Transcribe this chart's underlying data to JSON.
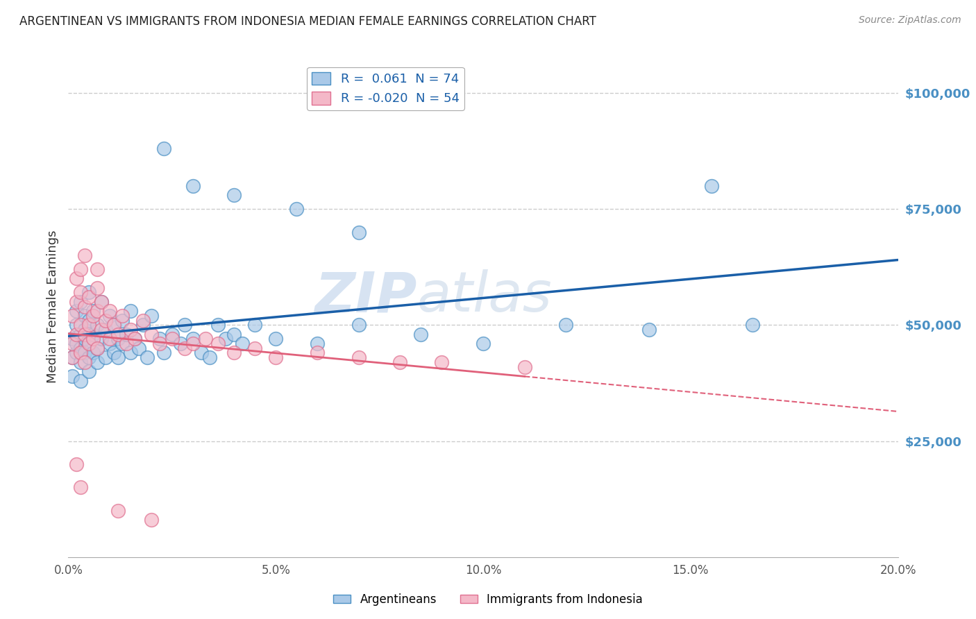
{
  "title": "ARGENTINEAN VS IMMIGRANTS FROM INDONESIA MEDIAN FEMALE EARNINGS CORRELATION CHART",
  "source": "Source: ZipAtlas.com",
  "ylabel": "Median Female Earnings",
  "xmin": 0.0,
  "xmax": 0.2,
  "ymin": 0,
  "ymax": 108000,
  "yticks": [
    25000,
    50000,
    75000,
    100000
  ],
  "ytick_labels": [
    "$25,000",
    "$50,000",
    "$75,000",
    "$100,000"
  ],
  "xticks": [
    0.0,
    0.05,
    0.1,
    0.15,
    0.2
  ],
  "xtick_labels": [
    "0.0%",
    "5.0%",
    "10.0%",
    "15.0%",
    "20.0%"
  ],
  "blue_R": 0.061,
  "blue_N": 74,
  "pink_R": -0.02,
  "pink_N": 54,
  "blue_color": "#aac9e8",
  "pink_color": "#f4b8c8",
  "blue_edge_color": "#4a90c4",
  "pink_edge_color": "#e07090",
  "blue_line_color": "#1a5fa8",
  "pink_line_color": "#e0607a",
  "tick_color": "#4a90c4",
  "background_color": "#ffffff",
  "grid_color": "#cccccc",
  "watermark_color": "#d0dff0",
  "legend_label_blue": "Argentineans",
  "legend_label_pink": "Immigrants from Indonesia",
  "blue_scatter_x": [
    0.001,
    0.001,
    0.001,
    0.002,
    0.002,
    0.002,
    0.002,
    0.003,
    0.003,
    0.003,
    0.003,
    0.003,
    0.004,
    0.004,
    0.004,
    0.004,
    0.005,
    0.005,
    0.005,
    0.005,
    0.005,
    0.006,
    0.006,
    0.006,
    0.007,
    0.007,
    0.007,
    0.008,
    0.008,
    0.009,
    0.009,
    0.01,
    0.01,
    0.011,
    0.011,
    0.012,
    0.012,
    0.013,
    0.013,
    0.014,
    0.015,
    0.015,
    0.016,
    0.017,
    0.018,
    0.019,
    0.02,
    0.022,
    0.023,
    0.025,
    0.027,
    0.028,
    0.03,
    0.032,
    0.034,
    0.036,
    0.038,
    0.04,
    0.042,
    0.045,
    0.05,
    0.06,
    0.07,
    0.085,
    0.1,
    0.12,
    0.14,
    0.165,
    0.023,
    0.03,
    0.04,
    0.055,
    0.07,
    0.155
  ],
  "blue_scatter_y": [
    43000,
    47000,
    39000,
    44000,
    50000,
    46000,
    53000,
    42000,
    48000,
    45000,
    55000,
    38000,
    47000,
    52000,
    44000,
    49000,
    46000,
    51000,
    43000,
    57000,
    40000,
    48000,
    44000,
    53000,
    45000,
    50000,
    42000,
    55000,
    47000,
    43000,
    49000,
    46000,
    52000,
    44000,
    50000,
    47000,
    43000,
    51000,
    46000,
    48000,
    44000,
    53000,
    47000,
    45000,
    50000,
    43000,
    52000,
    47000,
    44000,
    48000,
    46000,
    50000,
    47000,
    44000,
    43000,
    50000,
    47000,
    48000,
    46000,
    50000,
    47000,
    46000,
    50000,
    48000,
    46000,
    50000,
    49000,
    50000,
    88000,
    80000,
    78000,
    75000,
    70000,
    80000
  ],
  "pink_scatter_x": [
    0.001,
    0.001,
    0.001,
    0.002,
    0.002,
    0.002,
    0.003,
    0.003,
    0.003,
    0.003,
    0.004,
    0.004,
    0.004,
    0.005,
    0.005,
    0.005,
    0.006,
    0.006,
    0.007,
    0.007,
    0.007,
    0.008,
    0.008,
    0.009,
    0.01,
    0.01,
    0.011,
    0.012,
    0.013,
    0.014,
    0.015,
    0.016,
    0.018,
    0.02,
    0.022,
    0.025,
    0.028,
    0.03,
    0.033,
    0.036,
    0.04,
    0.045,
    0.05,
    0.06,
    0.07,
    0.08,
    0.09,
    0.11,
    0.002,
    0.003,
    0.004,
    0.007,
    0.012,
    0.02
  ],
  "pink_scatter_y": [
    46000,
    52000,
    43000,
    55000,
    48000,
    60000,
    50000,
    57000,
    44000,
    62000,
    48000,
    54000,
    42000,
    50000,
    56000,
    46000,
    52000,
    47000,
    53000,
    45000,
    58000,
    49000,
    55000,
    51000,
    47000,
    53000,
    50000,
    48000,
    52000,
    46000,
    49000,
    47000,
    51000,
    48000,
    46000,
    47000,
    45000,
    46000,
    47000,
    46000,
    44000,
    45000,
    43000,
    44000,
    43000,
    42000,
    42000,
    41000,
    20000,
    15000,
    65000,
    62000,
    10000,
    8000
  ]
}
